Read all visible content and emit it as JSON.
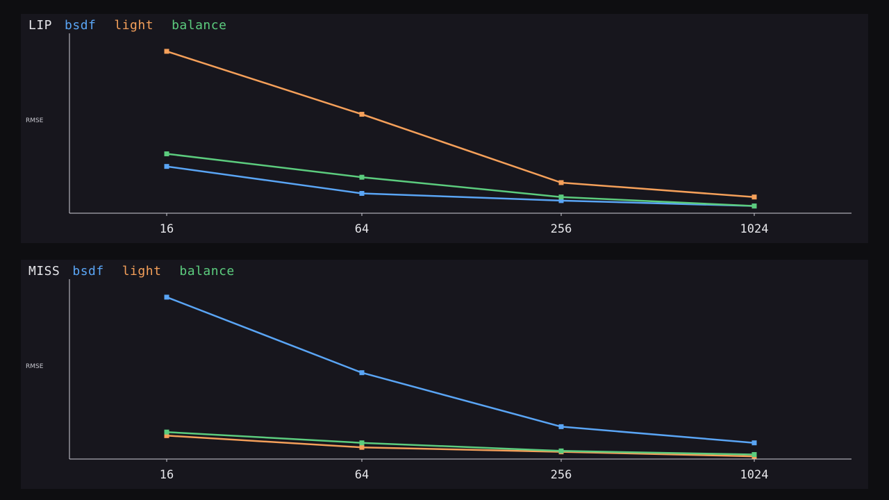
{
  "charts": [
    {
      "title": "LIP",
      "ylabel": "RMSE",
      "chart_data": {
        "type": "line",
        "title": "LIP",
        "xlabel": "",
        "ylabel": "RMSE",
        "x_scale": "log",
        "categories": [
          "16",
          "64",
          "256",
          "1024"
        ],
        "x": [
          16,
          64,
          256,
          1024
        ],
        "ylim": [
          0,
          1.0
        ],
        "grid": false,
        "legend": "top-left",
        "series": [
          {
            "name": "bsdf",
            "color": "#5aa5f5",
            "values": [
              0.26,
              0.11,
              0.07,
              0.04
            ]
          },
          {
            "name": "light",
            "color": "#f5a05a",
            "values": [
              0.9,
              0.55,
              0.17,
              0.09
            ]
          },
          {
            "name": "balance",
            "color": "#5ccc7e",
            "values": [
              0.33,
              0.2,
              0.09,
              0.04
            ]
          }
        ]
      }
    },
    {
      "title": "MISS",
      "ylabel": "RMSE",
      "chart_data": {
        "type": "line",
        "title": "MISS",
        "xlabel": "",
        "ylabel": "RMSE",
        "x_scale": "log",
        "categories": [
          "16",
          "64",
          "256",
          "1024"
        ],
        "x": [
          16,
          64,
          256,
          1024
        ],
        "ylim": [
          0,
          1.0
        ],
        "grid": false,
        "legend": "top-left",
        "series": [
          {
            "name": "bsdf",
            "color": "#5aa5f5",
            "values": [
              0.9,
              0.48,
              0.18,
              0.09
            ]
          },
          {
            "name": "light",
            "color": "#f5a05a",
            "values": [
              0.13,
              0.065,
              0.04,
              0.015
            ]
          },
          {
            "name": "balance",
            "color": "#5ccc7e",
            "values": [
              0.15,
              0.09,
              0.045,
              0.025
            ]
          }
        ]
      }
    }
  ]
}
